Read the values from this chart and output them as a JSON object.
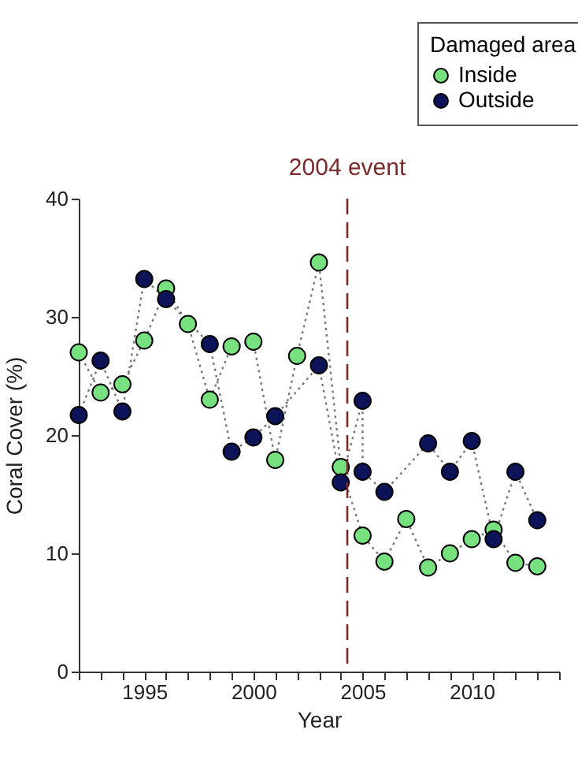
{
  "chart_data": {
    "type": "line",
    "xlabel": "Year",
    "ylabel": "Coral Cover (%)",
    "legend_title": "Damaged area",
    "legend": "top right",
    "marker": "circle",
    "line_style": "dotted",
    "grid": false,
    "xlim": [
      1992,
      2014
    ],
    "ylim": [
      0,
      40
    ],
    "yticks": [
      0,
      10,
      20,
      30,
      40
    ],
    "xticks": [
      {
        "value": 1992,
        "label": null
      },
      {
        "value": 1993,
        "label": null
      },
      {
        "value": 1994,
        "label": null
      },
      1995,
      {
        "value": 1996,
        "label": null
      },
      {
        "value": 1997,
        "label": null
      },
      {
        "value": 1998,
        "label": null
      },
      {
        "value": 1999,
        "label": null
      },
      2000,
      {
        "value": 2001,
        "label": null
      },
      {
        "value": 2002,
        "label": null
      },
      {
        "value": 2003,
        "label": null
      },
      {
        "value": 2004,
        "label": null
      },
      2005,
      {
        "value": 2006,
        "label": null
      },
      {
        "value": 2007,
        "label": null
      },
      {
        "value": 2008,
        "label": null
      },
      {
        "value": 2009,
        "label": null
      },
      2010,
      {
        "value": 2011,
        "label": null
      },
      {
        "value": 2012,
        "label": null
      },
      {
        "value": 2013,
        "label": null
      },
      {
        "value": 2014,
        "label": null
      }
    ],
    "series": [
      {
        "name": "Inside",
        "color": "#77e07f",
        "x": [
          1992,
          1993,
          1994,
          1995,
          1996,
          1997,
          1998,
          1999,
          2000,
          2001,
          2002,
          2003,
          2004,
          2005,
          2006,
          2007,
          2008,
          2009,
          2010,
          2011,
          2012,
          2013
        ],
        "values": [
          27.0,
          23.6,
          24.3,
          28.0,
          32.4,
          29.4,
          23.0,
          27.5,
          27.9,
          17.9,
          26.7,
          34.6,
          17.3,
          11.5,
          9.3,
          12.9,
          8.8,
          10.0,
          11.2,
          12.0,
          9.2,
          8.9
        ]
      },
      {
        "name": "Outside",
        "color": "#0d1358",
        "x": [
          1992,
          1993,
          1994,
          1995,
          1996,
          1998,
          1999,
          2000,
          2001,
          2003,
          2004,
          2005,
          2005,
          2006,
          2008,
          2009,
          2010,
          2011,
          2012,
          2013
        ],
        "values": [
          21.7,
          26.3,
          22.0,
          33.2,
          31.5,
          27.7,
          18.6,
          19.8,
          21.6,
          25.9,
          16.0,
          22.9,
          16.9,
          15.2,
          19.3,
          16.9,
          19.5,
          11.2,
          16.9,
          12.8
        ]
      }
    ],
    "ref_lines": [
      {
        "axis": "x",
        "value": 2004.3,
        "label": "2004 event",
        "color": "#7a2a2a",
        "line_style": "dashed"
      }
    ]
  }
}
